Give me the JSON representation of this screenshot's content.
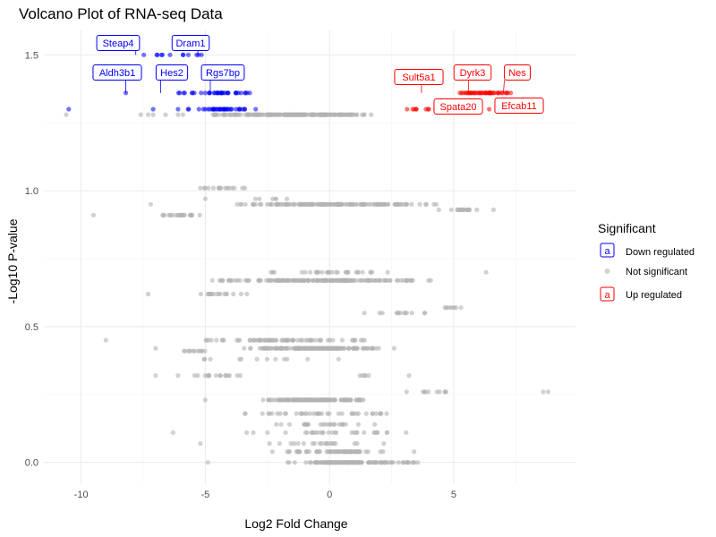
{
  "chart_data": {
    "type": "scatter",
    "title": "Volcano Plot of RNA-seq Data",
    "xlabel": "Log2 Fold Change",
    "ylabel": "-Log10 P-value",
    "xlim": [
      -11.5,
      9.9
    ],
    "ylim": [
      -0.08,
      1.59
    ],
    "x_ticks": [
      -10,
      -5,
      0,
      5
    ],
    "x_tick_labels": [
      "-10",
      "-5",
      "0",
      "5"
    ],
    "y_ticks": [
      0.0,
      0.5,
      1.0,
      1.5
    ],
    "y_tick_labels": [
      "0.0",
      "0.5",
      "1.0",
      "1.5"
    ],
    "grid": true,
    "legend": {
      "title": "Significant",
      "position": "right",
      "entries": [
        {
          "label": "Down regulated",
          "color": "#0000ff",
          "glyph": "a"
        },
        {
          "label": "Not significant",
          "color": "#b3b3b3",
          "glyph": "point"
        },
        {
          "label": "Up regulated",
          "color": "#ff0000",
          "glyph": "a"
        }
      ]
    },
    "colors": {
      "down": "#0000ff",
      "ns": "#b3b3b3",
      "up": "#ff0000"
    },
    "bands": [
      {
        "group": "ns",
        "y": 1.28,
        "x_min": -5.5,
        "x_max": 2.2,
        "n": 180,
        "extra": [
          -10.6,
          -7.6,
          -7.3,
          -7.1,
          -6.6,
          -6.1,
          -5.9
        ]
      },
      {
        "group": "ns",
        "y": 1.01,
        "x_min": -5.4,
        "x_max": -2.7,
        "n": 16,
        "extra": []
      },
      {
        "group": "ns",
        "y": 0.97,
        "x_min": -3.1,
        "x_max": -1.2,
        "n": 6,
        "extra": [
          -5.0
        ]
      },
      {
        "group": "ns",
        "y": 0.95,
        "x_min": -4.5,
        "x_max": 4.4,
        "n": 150,
        "extra": [
          -7.2,
          4.3
        ]
      },
      {
        "group": "ns",
        "y": 0.93,
        "x_min": 4.7,
        "x_max": 6.3,
        "n": 16,
        "extra": [
          4.4,
          6.6
        ]
      },
      {
        "group": "ns",
        "y": 0.91,
        "x_min": -7.1,
        "x_max": -4.8,
        "n": 20,
        "extra": [
          -9.5,
          -5.6
        ]
      },
      {
        "group": "ns",
        "y": 0.7,
        "x_min": -2.6,
        "x_max": 3.7,
        "n": 30,
        "extra": [
          6.3
        ]
      },
      {
        "group": "ns",
        "y": 0.67,
        "x_min": -5.0,
        "x_max": 4.4,
        "n": 170,
        "extra": [
          -4.3,
          -3.7
        ]
      },
      {
        "group": "ns",
        "y": 0.62,
        "x_min": -5.8,
        "x_max": -3.0,
        "n": 16,
        "extra": [
          -7.3
        ]
      },
      {
        "group": "ns",
        "y": 0.57,
        "x_min": 4.4,
        "x_max": 5.4,
        "n": 8,
        "extra": []
      },
      {
        "group": "ns",
        "y": 0.55,
        "x_min": 1.9,
        "x_max": 4.2,
        "n": 12,
        "extra": [
          1.4
        ]
      },
      {
        "group": "ns",
        "y": 0.45,
        "x_min": -5.6,
        "x_max": 2.1,
        "n": 70,
        "extra": [
          -9.0
        ]
      },
      {
        "group": "ns",
        "y": 0.42,
        "x_min": -3.5,
        "x_max": 2.3,
        "n": 160,
        "extra": [
          -7.0,
          2.6
        ]
      },
      {
        "group": "ns",
        "y": 0.41,
        "x_min": -6.1,
        "x_max": -4.8,
        "n": 12,
        "extra": []
      },
      {
        "group": "ns",
        "y": 0.38,
        "x_min": -6.7,
        "x_max": 1.4,
        "n": 12,
        "extra": []
      },
      {
        "group": "ns",
        "y": 0.32,
        "x_min": -5.8,
        "x_max": -2.6,
        "n": 16,
        "extra": [
          -7.0,
          -6.1
        ]
      },
      {
        "group": "ns",
        "y": 0.32,
        "x_min": 1.1,
        "x_max": 1.6,
        "n": 5,
        "extra": [
          3.2
        ]
      },
      {
        "group": "ns",
        "y": 0.26,
        "x_min": 3.0,
        "x_max": 4.9,
        "n": 10,
        "extra": [
          8.6,
          8.8
        ]
      },
      {
        "group": "ns",
        "y": 0.23,
        "x_min": -3.0,
        "x_max": 1.8,
        "n": 150,
        "extra": [
          -5.0
        ]
      },
      {
        "group": "ns",
        "y": 0.18,
        "x_min": -3.6,
        "x_max": 2.8,
        "n": 40,
        "extra": []
      },
      {
        "group": "ns",
        "y": 0.14,
        "x_min": -3.2,
        "x_max": 2.6,
        "n": 25,
        "extra": []
      },
      {
        "group": "ns",
        "y": 0.11,
        "x_min": -3.6,
        "x_max": 3.4,
        "n": 30,
        "extra": [
          -6.3
        ]
      },
      {
        "group": "ns",
        "y": 0.07,
        "x_min": -3.0,
        "x_max": 2.3,
        "n": 20,
        "extra": [
          -5.2
        ]
      },
      {
        "group": "ns",
        "y": 0.04,
        "x_min": -3.0,
        "x_max": 2.6,
        "n": 60,
        "extra": [
          3.4
        ]
      },
      {
        "group": "ns",
        "y": 0.0,
        "x_min": -2.3,
        "x_max": 3.8,
        "n": 120,
        "extra": [
          -4.9
        ]
      },
      {
        "group": "down",
        "y": 1.5,
        "x_min": -7.9,
        "x_max": -5.0,
        "n": 12,
        "extra": []
      },
      {
        "group": "down",
        "y": 1.36,
        "x_min": -7.1,
        "x_max": -2.5,
        "n": 36,
        "extra": [
          -8.2
        ]
      },
      {
        "group": "down",
        "y": 1.3,
        "x_min": -5.9,
        "x_max": -2.2,
        "n": 36,
        "extra": [
          -10.5,
          -7.1,
          -6.1
        ]
      },
      {
        "group": "up",
        "y": 1.36,
        "x_min": 4.8,
        "x_max": 7.6,
        "n": 44,
        "extra": []
      },
      {
        "group": "up",
        "y": 1.3,
        "x_min": 2.2,
        "x_max": 6.8,
        "n": 24,
        "extra": []
      }
    ],
    "labels": [
      {
        "text": "Steap4",
        "group": "down",
        "x": -7.8,
        "y": 1.5
      },
      {
        "text": "Dram1",
        "group": "down",
        "x": -5.3,
        "y": 1.5
      },
      {
        "text": "Aldh3b1",
        "group": "down",
        "x": -8.2,
        "y": 1.36
      },
      {
        "text": "Hes2",
        "group": "down",
        "x": -6.8,
        "y": 1.36
      },
      {
        "text": "Rgs7bp",
        "group": "down",
        "x": -4.8,
        "y": 1.36
      },
      {
        "text": "Sult5a1",
        "group": "up",
        "x": 3.7,
        "y": 1.36
      },
      {
        "text": "Dyrk3",
        "group": "up",
        "x": 5.6,
        "y": 1.36
      },
      {
        "text": "Nes",
        "group": "up",
        "x": 7.0,
        "y": 1.36
      },
      {
        "text": "Spata20",
        "group": "up",
        "x": 4.6,
        "y": 1.3
      },
      {
        "text": "Efcab11",
        "group": "up",
        "x": 6.6,
        "y": 1.3
      }
    ]
  }
}
